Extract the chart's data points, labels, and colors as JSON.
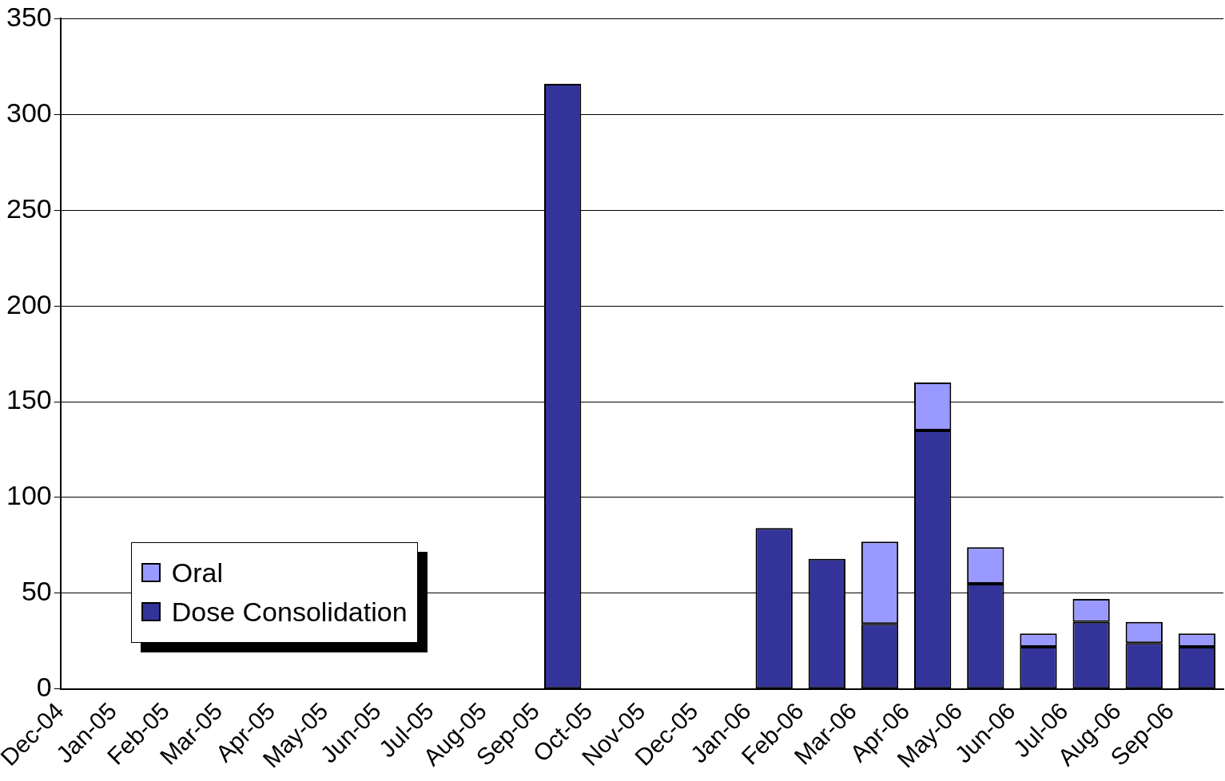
{
  "chart_data": {
    "type": "bar",
    "stacked": true,
    "categories": [
      "Dec-04",
      "Jan-05",
      "Feb-05",
      "Mar-05",
      "Apr-05",
      "May-05",
      "Jun-05",
      "Jul-05",
      "Aug-05",
      "Sep-05",
      "Oct-05",
      "Nov-05",
      "Dec-05",
      "Jan-06",
      "Feb-06",
      "Mar-06",
      "Apr-06",
      "May-06",
      "Jun-06",
      "Jul-06",
      "Aug-06",
      "Sep-06"
    ],
    "series": [
      {
        "name": "Dose Consolidation",
        "color": "#333399",
        "values": [
          0,
          0,
          0,
          0,
          0,
          0,
          0,
          0,
          0,
          316,
          0,
          0,
          0,
          84,
          68,
          34,
          135,
          55,
          22,
          35,
          24,
          22
        ]
      },
      {
        "name": "Oral",
        "color": "#9999ff",
        "values": [
          null,
          null,
          null,
          null,
          null,
          null,
          null,
          null,
          null,
          null,
          null,
          null,
          null,
          null,
          null,
          43,
          25,
          19,
          7,
          12,
          11,
          7
        ]
      }
    ],
    "ylim": [
      0,
      350
    ],
    "yticks": [
      0,
      50,
      100,
      150,
      200,
      250,
      300,
      350
    ],
    "grid": "y",
    "legend": "bottom left"
  }
}
